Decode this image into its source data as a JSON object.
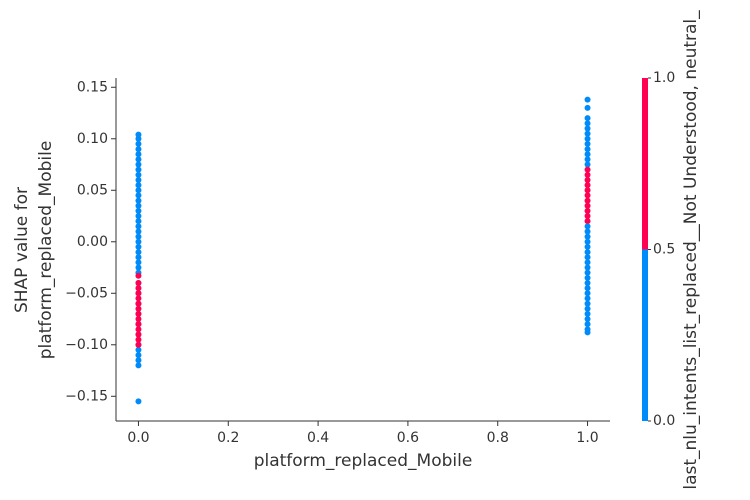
{
  "chart_data": {
    "type": "scatter",
    "xlabel": "platform_replaced_Mobile",
    "ylabel_lines": [
      "SHAP value for",
      "platform_replaced_Mobile"
    ],
    "colorbar_label": "last_nlu_intents_list_replaced__Not Understood, neutral_",
    "xlim": [
      -0.05,
      1.05
    ],
    "ylim": [
      -0.174,
      0.159
    ],
    "xticks": [
      {
        "value": 0,
        "label": "0.0"
      },
      0.2,
      0.4,
      0.6,
      0.8,
      {
        "value": 1,
        "label": "1.0"
      }
    ],
    "yticks": [
      {
        "value": -0.15,
        "label": "−0.15"
      },
      {
        "value": -0.1,
        "label": "−0.10"
      },
      {
        "value": -0.05,
        "label": "−0.05"
      },
      {
        "value": 0,
        "label": "0.00"
      },
      0.05,
      {
        "value": 0.1,
        "label": "0.10"
      },
      0.15
    ],
    "clim": [
      0,
      1
    ],
    "cticks": [
      {
        "value": 0,
        "label": "0.0"
      },
      0.5,
      {
        "value": 1,
        "label": "1.0"
      }
    ],
    "cmap_colors": [
      "#008bfb",
      "#ff0052"
    ],
    "x": [
      0,
      0,
      0,
      0,
      0,
      0,
      0,
      0,
      0,
      0,
      0,
      0,
      0,
      0,
      0,
      0,
      0,
      0,
      0,
      0,
      0,
      0,
      0,
      0,
      0,
      0,
      0,
      0,
      0,
      0,
      0,
      0,
      0,
      0,
      0,
      0,
      0,
      0,
      0,
      0,
      0,
      0,
      0,
      0,
      0,
      0,
      0,
      0,
      0,
      0,
      0,
      0,
      0,
      0,
      1,
      1,
      1,
      1,
      1,
      1,
      1,
      1,
      1,
      1,
      1,
      1,
      1,
      1,
      1,
      1,
      1,
      1,
      1,
      1,
      1,
      1,
      1,
      1,
      1,
      1,
      1,
      1,
      1,
      1,
      1,
      1,
      1,
      1,
      1,
      1,
      1,
      1,
      1,
      1,
      1,
      1,
      1,
      1,
      1
    ],
    "values": [
      0.104,
      0.1,
      0.095,
      0.09,
      0.085,
      0.08,
      0.075,
      0.07,
      0.065,
      0.06,
      0.055,
      0.05,
      0.045,
      0.04,
      0.035,
      0.03,
      0.025,
      0.02,
      0.015,
      0.01,
      0.005,
      0,
      -0.005,
      -0.01,
      -0.015,
      -0.02,
      -0.025,
      -0.03,
      -0.04,
      -0.05,
      -0.06,
      -0.07,
      -0.08,
      -0.09,
      -0.1,
      -0.105,
      -0.11,
      -0.115,
      -0.12,
      -0.155,
      -0.033,
      -0.04,
      -0.045,
      -0.05,
      -0.055,
      -0.06,
      -0.065,
      -0.07,
      -0.075,
      -0.08,
      -0.085,
      -0.09,
      -0.095,
      -0.1,
      0.138,
      0.13,
      0.12,
      0.115,
      0.11,
      0.105,
      0.1,
      0.095,
      0.09,
      0.085,
      0.08,
      0.075,
      0.07,
      0.065,
      0.06,
      0.055,
      0.05,
      0.045,
      0.04,
      0.035,
      0.03,
      0.025,
      0.02,
      0.015,
      0.01,
      0.005,
      0,
      -0.005,
      -0.01,
      -0.015,
      -0.02,
      -0.025,
      -0.03,
      -0.035,
      -0.04,
      -0.045,
      -0.05,
      -0.055,
      -0.06,
      -0.065,
      -0.07,
      -0.075,
      -0.08,
      -0.085,
      -0.088
    ],
    "color_values": [
      0,
      0,
      0,
      0,
      0,
      0,
      0,
      0,
      0,
      0,
      0,
      0,
      0,
      0,
      0,
      0,
      0,
      0,
      0,
      0,
      0,
      0,
      0,
      0,
      0,
      0,
      0,
      0,
      0,
      0,
      0,
      0,
      0,
      0,
      0,
      0,
      0,
      0,
      0,
      0,
      1,
      1,
      1,
      1,
      1,
      1,
      1,
      1,
      1,
      1,
      1,
      1,
      1,
      1,
      0,
      0,
      0,
      0,
      0,
      0,
      0,
      0,
      0,
      0,
      0,
      0,
      1,
      1,
      1,
      1,
      1,
      1,
      1,
      1,
      1,
      1,
      1,
      0,
      0,
      0,
      0,
      0,
      0,
      0,
      0,
      0,
      0,
      0,
      0,
      0,
      0,
      0,
      0,
      0,
      0,
      0,
      0,
      0,
      0
    ]
  }
}
